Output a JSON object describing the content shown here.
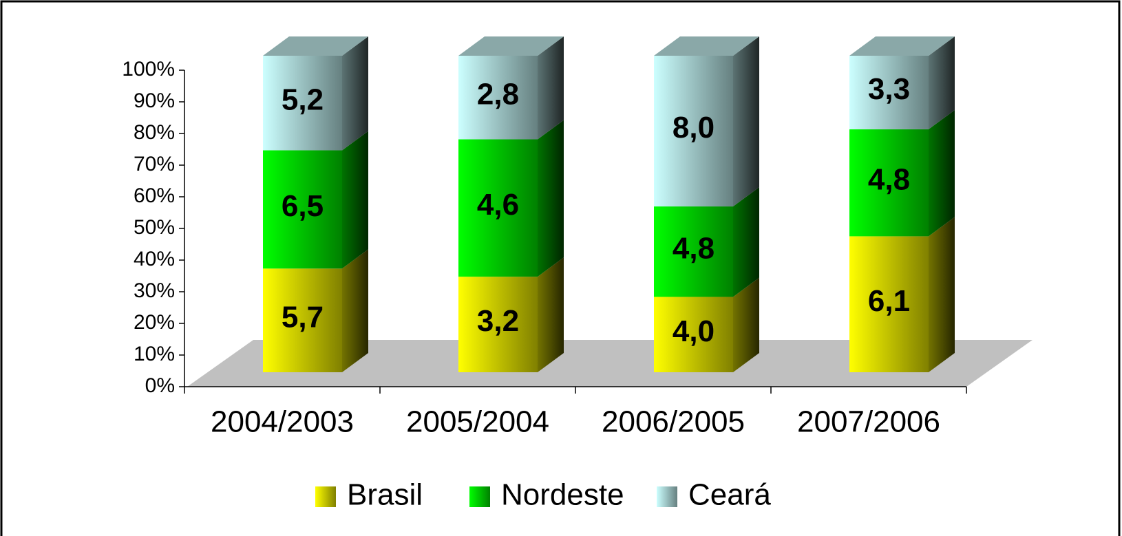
{
  "chart_data": {
    "type": "bar",
    "stacking": "percent",
    "categories": [
      "2004/2003",
      "2005/2004",
      "2006/2005",
      "2007/2006"
    ],
    "series": [
      {
        "name": "Brasil",
        "color": "#ffff00",
        "values": [
          5.7,
          3.2,
          4.0,
          6.1
        ],
        "value_labels": [
          "5,7",
          "3,2",
          "4,0",
          "6,1"
        ]
      },
      {
        "name": "Nordeste",
        "color": "#00ff00",
        "values": [
          6.5,
          4.6,
          4.8,
          4.8
        ],
        "value_labels": [
          "6,5",
          "4,6",
          "4,8",
          "4,8"
        ]
      },
      {
        "name": "Ceará",
        "color": "#ccffff",
        "values": [
          5.2,
          2.8,
          8.0,
          3.3
        ],
        "value_labels": [
          "5,2",
          "2,8",
          "8,0",
          "3,3"
        ]
      }
    ],
    "ylim": [
      0,
      100
    ],
    "yticks": [
      {
        "value": 0,
        "label": "0%"
      },
      {
        "value": 10,
        "label": "10%"
      },
      {
        "value": 20,
        "label": "20%"
      },
      {
        "value": 30,
        "label": "30%"
      },
      {
        "value": 40,
        "label": "40%"
      },
      {
        "value": 50,
        "label": "50%"
      },
      {
        "value": 60,
        "label": "60%"
      },
      {
        "value": 70,
        "label": "70%"
      },
      {
        "value": 80,
        "label": "80%"
      },
      {
        "value": 90,
        "label": "90%"
      },
      {
        "value": 100,
        "label": "100%"
      }
    ],
    "legend": "bottom"
  }
}
